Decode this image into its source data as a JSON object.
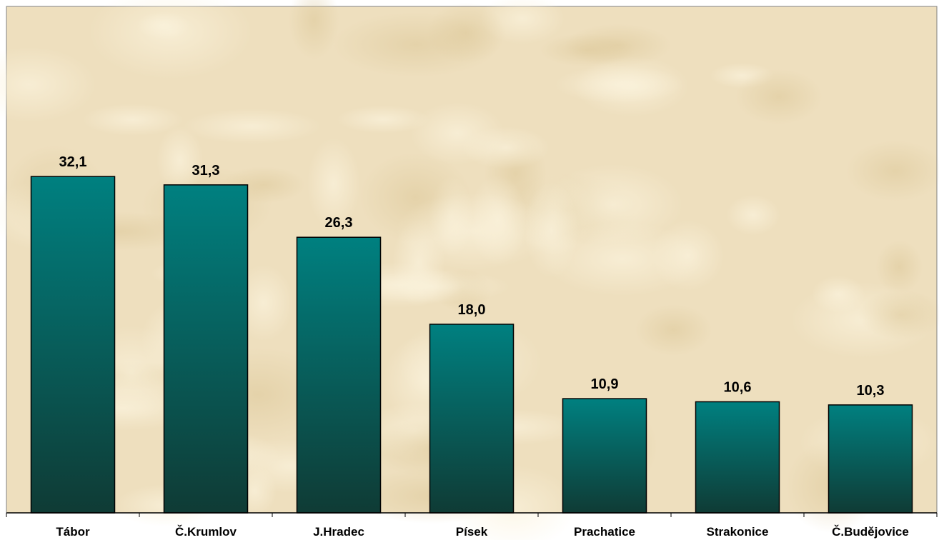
{
  "chart_data": {
    "type": "bar",
    "categories": [
      "Tábor",
      "Č.Krumlov",
      "J.Hradec",
      "Písek",
      "Prachatice",
      "Strakonice",
      "Č.Budějovice"
    ],
    "values": [
      32.1,
      31.3,
      26.3,
      18.0,
      10.9,
      10.6,
      10.3
    ],
    "data_labels": [
      "32,1",
      "31,3",
      "26,3",
      "18,0",
      "10,9",
      "10,6",
      "10,3"
    ],
    "title": "",
    "xlabel": "",
    "ylabel": "",
    "ylim": [
      0,
      40
    ],
    "grid": false,
    "legend": "none",
    "colors": {
      "bar_top": "#008080",
      "bar_bottom": "#0f3b35",
      "bar_stroke": "#000000",
      "plot_bg": "#eedfbe",
      "plot_bg_light": "#f6ecd2",
      "plot_bg_dark": "#e2cfa4",
      "axis": "#000000",
      "text": "#000000"
    }
  }
}
